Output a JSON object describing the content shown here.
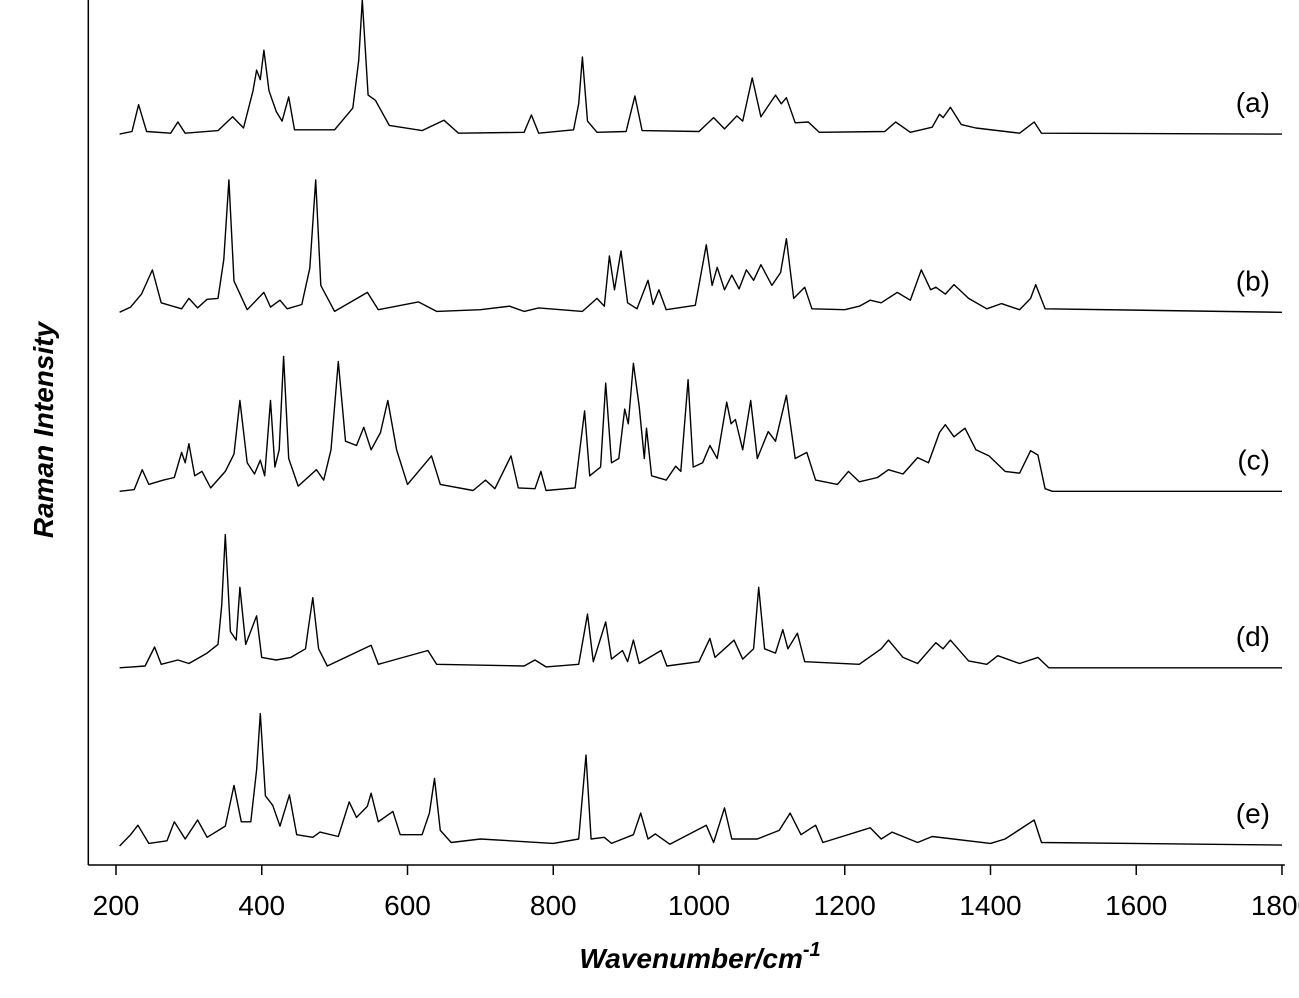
{
  "chart_data": {
    "type": "line",
    "x_label": "Wavenumber/cm",
    "x_label_superscript": "-1",
    "y_label": "Raman Intensity",
    "xlim": [
      162,
      1804
    ],
    "xticks": [
      200,
      400,
      600,
      800,
      1000,
      1200,
      1400,
      1600,
      1800
    ],
    "ylim": [
      0,
      100
    ],
    "series": [
      {
        "name": "(a)",
        "color": "#000000",
        "x": [
          205,
          222,
          231,
          242,
          275,
          285,
          295,
          340,
          360,
          375,
          388,
          393,
          398,
          403,
          410,
          420,
          428,
          437,
          445,
          500,
          525,
          533,
          538,
          546,
          556,
          575,
          620,
          650,
          670,
          760,
          770,
          780,
          828,
          835,
          840,
          847,
          860,
          900,
          912,
          922,
          1000,
          1020,
          1035,
          1052,
          1060,
          1073,
          1085,
          1105,
          1113,
          1120,
          1132,
          1150,
          1165,
          1255,
          1270,
          1290,
          1320,
          1330,
          1335,
          1345,
          1360,
          1380,
          1440,
          1460,
          1470,
          1800
        ],
        "values": [
          84.5,
          84.8,
          87.9,
          84.8,
          84.6,
          85.9,
          84.6,
          84.9,
          86.5,
          85.2,
          89.5,
          91.9,
          90.8,
          94.2,
          89.5,
          87.1,
          86.0,
          88.8,
          85.0,
          85.0,
          87.5,
          93,
          100,
          89,
          88.4,
          85.5,
          84.9,
          86.1,
          84.6,
          84.7,
          86.7,
          84.6,
          85.0,
          88,
          93.4,
          86,
          84.7,
          84.8,
          88.9,
          84.9,
          84.8,
          86.4,
          85.1,
          86.6,
          86.0,
          91.0,
          86.5,
          89.0,
          88.0,
          88.7,
          85.8,
          85.9,
          84.7,
          84.8,
          85.9,
          84.7,
          85.3,
          86.8,
          86.4,
          87.6,
          85.6,
          85.2,
          84.6,
          85.9,
          84.6,
          84.5
        ]
      },
      {
        "name": "(b)",
        "color": "#000000",
        "x": [
          205,
          220,
          235,
          250,
          262,
          290,
          300,
          312,
          325,
          340,
          348,
          355,
          362,
          380,
          403,
          412,
          425,
          435,
          455,
          466,
          474,
          481,
          500,
          545,
          560,
          615,
          640,
          700,
          740,
          760,
          780,
          840,
          860,
          870,
          877,
          884,
          893,
          902,
          915,
          930,
          937,
          945,
          955,
          995,
          1010,
          1018,
          1025,
          1035,
          1045,
          1055,
          1065,
          1075,
          1085,
          1100,
          1112,
          1120,
          1130,
          1145,
          1155,
          1200,
          1220,
          1235,
          1250,
          1272,
          1290,
          1305,
          1318,
          1325,
          1338,
          1350,
          1370,
          1395,
          1415,
          1440,
          1455,
          1462,
          1475,
          1800
        ],
        "values": [
          63.9,
          64.5,
          66.0,
          68.8,
          65.0,
          64.3,
          65.5,
          64.4,
          65.4,
          65.5,
          70,
          79.2,
          67.5,
          64.2,
          66.2,
          64.5,
          65.3,
          64.3,
          64.8,
          69,
          79.2,
          67,
          64.0,
          66.2,
          64.2,
          65.1,
          64.0,
          64.2,
          64.6,
          64.0,
          64.4,
          64.0,
          65.5,
          64.6,
          70.4,
          66.5,
          71.0,
          65.0,
          64.3,
          67.6,
          64.8,
          66.5,
          64.2,
          64.7,
          71.7,
          67.0,
          69.1,
          66.5,
          68.2,
          66.6,
          68.8,
          67.6,
          69.4,
          67.0,
          68.5,
          72.4,
          65.5,
          66.8,
          64.3,
          64.2,
          64.6,
          65.3,
          65.0,
          66.2,
          65.3,
          68.8,
          66.5,
          66.8,
          66.0,
          67.1,
          65.5,
          64.3,
          64.9,
          64.2,
          65.5,
          67.1,
          64.3,
          63.9
        ]
      },
      {
        "name": "(c)",
        "color": "#000000",
        "x": [
          205,
          225,
          236,
          245,
          265,
          280,
          290,
          295,
          300,
          308,
          318,
          330,
          350,
          362,
          370,
          380,
          390,
          398,
          404,
          412,
          418,
          424,
          430,
          437,
          450,
          475,
          485,
          495,
          505,
          515,
          530,
          540,
          550,
          563,
          573,
          585,
          600,
          633,
          645,
          690,
          707,
          720,
          742,
          752,
          775,
          783,
          790,
          830,
          843,
          850,
          865,
          872,
          880,
          890,
          898,
          903,
          910,
          918,
          925,
          928,
          935,
          955,
          968,
          975,
          985,
          992,
          1005,
          1015,
          1025,
          1038,
          1044,
          1050,
          1060,
          1071,
          1080,
          1095,
          1105,
          1120,
          1132,
          1148,
          1160,
          1190,
          1205,
          1220,
          1245,
          1260,
          1280,
          1300,
          1315,
          1330,
          1338,
          1350,
          1365,
          1380,
          1398,
          1420,
          1440,
          1455,
          1465,
          1475,
          1485,
          1800
        ],
        "values": [
          43.2,
          43.4,
          45.7,
          44.0,
          44.5,
          44.8,
          47.7,
          46.5,
          48.7,
          45.0,
          45.5,
          43.6,
          45.5,
          47.5,
          53.7,
          46.5,
          45.2,
          46.8,
          45.0,
          53.7,
          46.0,
          48,
          58.8,
          47,
          43.8,
          45.7,
          44.5,
          48,
          58.2,
          49,
          48.5,
          50.6,
          48.0,
          50,
          53.7,
          48,
          44.0,
          47.3,
          44.0,
          43.3,
          44.5,
          43.5,
          47.3,
          43.6,
          43.5,
          45.5,
          43.3,
          43.6,
          52.5,
          45,
          46,
          55.7,
          46.5,
          47,
          52.7,
          51,
          58.0,
          53,
          47,
          50.5,
          45,
          44.5,
          46.1,
          45.5,
          56.1,
          46,
          46.5,
          48.5,
          47,
          53.5,
          51,
          51.5,
          48,
          53.7,
          47,
          50.1,
          49,
          54.3,
          47,
          47.7,
          44.5,
          44.0,
          45.5,
          44.3,
          44.8,
          45.7,
          45.2,
          47.1,
          46.5,
          50,
          50.9,
          49.5,
          50.5,
          48,
          47.3,
          45.5,
          45.3,
          47.9,
          47.4,
          43.5,
          43.2,
          43.2
        ]
      },
      {
        "name": "(d)",
        "color": "#000000",
        "x": [
          205,
          240,
          253,
          262,
          285,
          300,
          325,
          340,
          345,
          350,
          357,
          365,
          370,
          378,
          393,
          400,
          420,
          440,
          460,
          465,
          470,
          478,
          490,
          550,
          560,
          628,
          640,
          760,
          775,
          790,
          835,
          847,
          855,
          872,
          880,
          895,
          902,
          910,
          918,
          948,
          956,
          1000,
          1015,
          1022,
          1035,
          1048,
          1060,
          1075,
          1082,
          1090,
          1105,
          1115,
          1122,
          1135,
          1145,
          1220,
          1250,
          1260,
          1280,
          1300,
          1325,
          1335,
          1345,
          1370,
          1395,
          1410,
          1440,
          1465,
          1480,
          1800
        ],
        "values": [
          22.8,
          23.0,
          25.2,
          23.2,
          23.7,
          23.3,
          24.5,
          25.5,
          30,
          38.2,
          27,
          26,
          32.1,
          25.5,
          28.8,
          24,
          23.7,
          24.0,
          25,
          28,
          30.9,
          25,
          23,
          25.4,
          23.2,
          24.8,
          23.2,
          23.0,
          23.7,
          22.9,
          23.2,
          29.0,
          23.5,
          28.1,
          23.8,
          24.8,
          23.5,
          26.0,
          23.3,
          24.8,
          23.0,
          23.5,
          26.2,
          24,
          25,
          26.0,
          23.8,
          25,
          32.1,
          25,
          24.5,
          27.2,
          25,
          26.8,
          23.5,
          23.2,
          25,
          26.0,
          24,
          23.3,
          25.7,
          25,
          26.0,
          23.6,
          23.2,
          24.2,
          23.3,
          24.0,
          22.8,
          22.8
        ]
      },
      {
        "name": "(e)",
        "color": "#000000",
        "x": [
          205,
          220,
          230,
          245,
          270,
          280,
          295,
          312,
          325,
          350,
          362,
          372,
          385,
          393,
          398,
          405,
          415,
          425,
          438,
          448,
          470,
          480,
          505,
          520,
          530,
          545,
          550,
          560,
          580,
          590,
          620,
          630,
          637,
          645,
          660,
          700,
          800,
          835,
          845,
          852,
          870,
          880,
          910,
          920,
          930,
          940,
          960,
          1010,
          1020,
          1035,
          1045,
          1080,
          1110,
          1125,
          1140,
          1160,
          1170,
          1235,
          1250,
          1265,
          1300,
          1320,
          1400,
          1420,
          1460,
          1470,
          1800
        ],
        "values": [
          2.2,
          3.5,
          4.6,
          2.5,
          2.8,
          5.0,
          3.0,
          5.2,
          3.2,
          4.5,
          9.2,
          5,
          5,
          11,
          17.5,
          8,
          6.9,
          4.5,
          8.1,
          3.5,
          3.2,
          3.8,
          3.3,
          7.3,
          5.5,
          6.8,
          8.3,
          5,
          6.2,
          3.5,
          3.5,
          6,
          10.0,
          4,
          2.6,
          3.0,
          2.5,
          3,
          12.7,
          3,
          3.2,
          2.5,
          3.5,
          6.0,
          3,
          3.6,
          2.4,
          4.6,
          2.6,
          6.6,
          3,
          3,
          4,
          6.0,
          3.5,
          4.6,
          2.6,
          4.3,
          3.0,
          3.8,
          2.6,
          3.3,
          2.5,
          3.0,
          5.2,
          2.6,
          2.3
        ]
      }
    ]
  }
}
